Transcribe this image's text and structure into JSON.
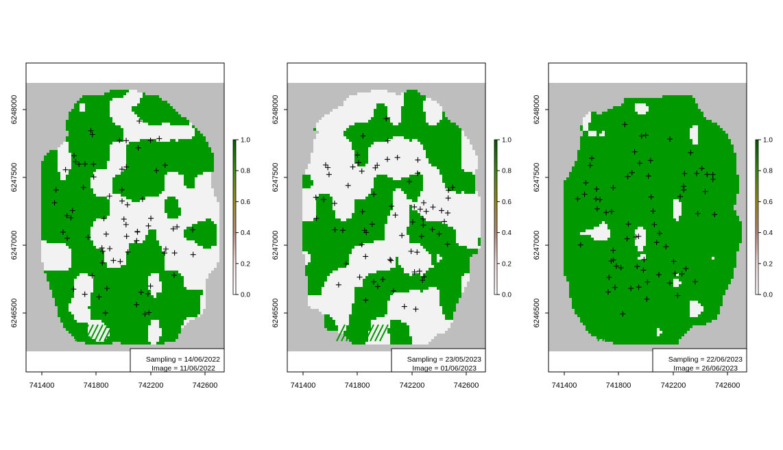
{
  "colors": {
    "background_raster": "#bebebe",
    "low_class": "#f2f2f2",
    "high_class": "#009900",
    "marker": "#000000"
  },
  "colorbar": {
    "ticks": [
      "0.0",
      "0.2",
      "0.4",
      "0.6",
      "0.8",
      "1.0"
    ],
    "gradient": [
      "#ffffff",
      "#f3dfe0",
      "#b98a7a",
      "#9a8a1a",
      "#3f8a12",
      "#005a00"
    ]
  },
  "axes": {
    "x_ticks": [
      "741400",
      "741800",
      "742200",
      "742600"
    ],
    "y_ticks": [
      "6248000",
      "6247500",
      "6247000",
      "6246500"
    ]
  },
  "panels": [
    {
      "id": "panel-2022",
      "sampling_text": "Sampling = 14/06/2022",
      "image_text": "Image = 11/06/2022",
      "green_fraction": 0.55
    },
    {
      "id": "panel-2023a",
      "sampling_text": "Sampling = 23/05/2023",
      "image_text": "Image = 01/06/2023",
      "green_fraction": 0.45
    },
    {
      "id": "panel-2023b",
      "sampling_text": "Sampling = 22/06/2023",
      "image_text": "Image = 26/06/2023",
      "green_fraction": 0.85
    }
  ]
}
